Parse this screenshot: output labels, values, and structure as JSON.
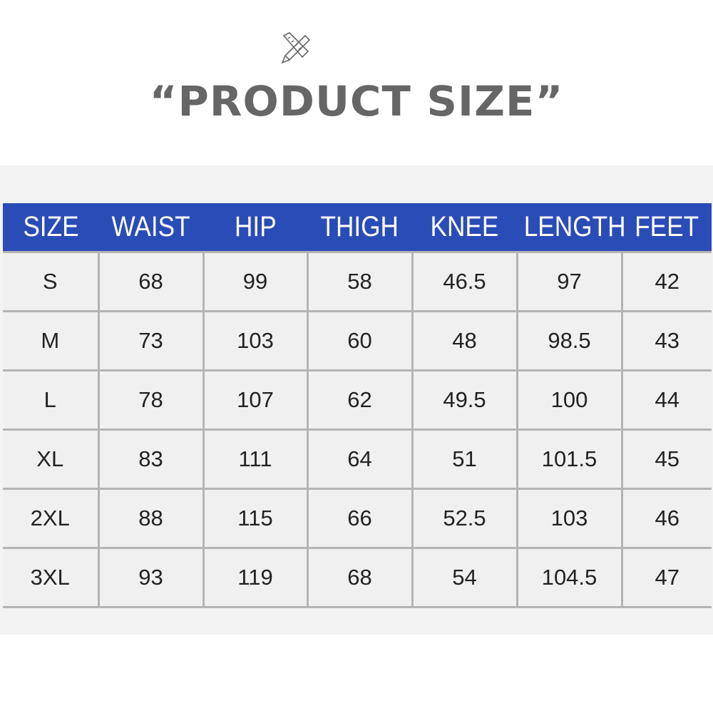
{
  "header": {
    "icon": "pencil-ruler-icon",
    "title": "“PRODUCT SIZE”"
  },
  "table": {
    "columns": [
      "SIZE",
      "WAIST",
      "HIP",
      "THIGH",
      "KNEE",
      "LENGTH",
      "FEET"
    ],
    "rows": [
      [
        "S",
        "68",
        "99",
        "58",
        "46.5",
        "97",
        "42"
      ],
      [
        "M",
        "73",
        "103",
        "60",
        "48",
        "98.5",
        "43"
      ],
      [
        "L",
        "78",
        "107",
        "62",
        "49.5",
        "100",
        "44"
      ],
      [
        "XL",
        "83",
        "111",
        "64",
        "51",
        "101.5",
        "45"
      ],
      [
        "2XL",
        "88",
        "115",
        "66",
        "52.5",
        "103",
        "46"
      ],
      [
        "3XL",
        "93",
        "119",
        "68",
        "54",
        "104.5",
        "47"
      ]
    ]
  },
  "colors": {
    "header_bg": "#2a4cb6",
    "title": "#666666",
    "cell_bg": "#f0f0f0"
  }
}
